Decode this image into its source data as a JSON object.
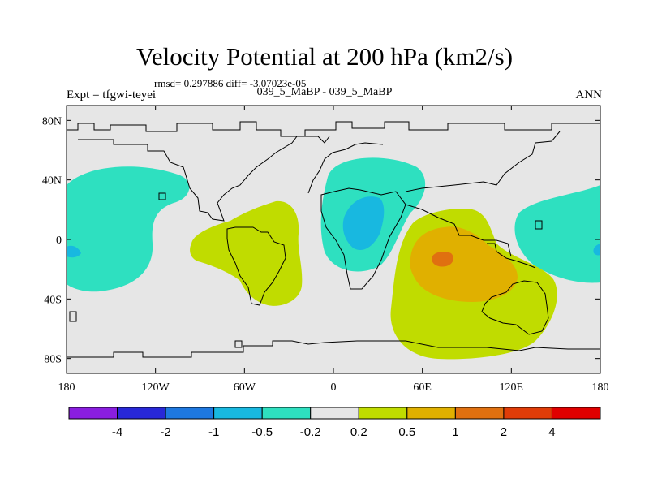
{
  "title": "Velocity Potential at 200 hPa (km2/s)",
  "stats": "rmsd= 0.297886 diff= -3.07023e-05",
  "experiment": "Expt = tfgwi-teyei",
  "cases": "039_5_MaBP - 039_5_MaBP",
  "season": "ANN",
  "colors": {
    "background_field": "#e6e6e6",
    "cyan": "#2ee0c0",
    "light_blue": "#18b8e0",
    "yellow_green": "#c0dc00",
    "gold": "#e0b000",
    "orange": "#e07010"
  },
  "map": {
    "x_axis": {
      "range": [
        -180,
        180
      ],
      "ticks": [
        -180,
        -120,
        -60,
        0,
        60,
        120,
        180
      ],
      "labels": [
        "180",
        "120W",
        "60W",
        "0",
        "60E",
        "120E",
        "180"
      ]
    },
    "y_axis": {
      "range": [
        -90,
        90
      ],
      "ticks": [
        80,
        40,
        0,
        -40,
        -80
      ],
      "labels": [
        "80N",
        "40N",
        "0",
        "40S",
        "80S"
      ]
    }
  },
  "colorbar": {
    "levels": [
      "-4",
      "-2",
      "-1",
      "-0.5",
      "-0.2",
      "0.2",
      "0.5",
      "1",
      "2",
      "4"
    ],
    "colors": [
      "#8a1ee0",
      "#2828d8",
      "#1e78e0",
      "#18b8e0",
      "#2ee0c0",
      "#e6e6e6",
      "#c0dc00",
      "#e0b000",
      "#e07010",
      "#e03c08",
      "#e00000"
    ]
  }
}
